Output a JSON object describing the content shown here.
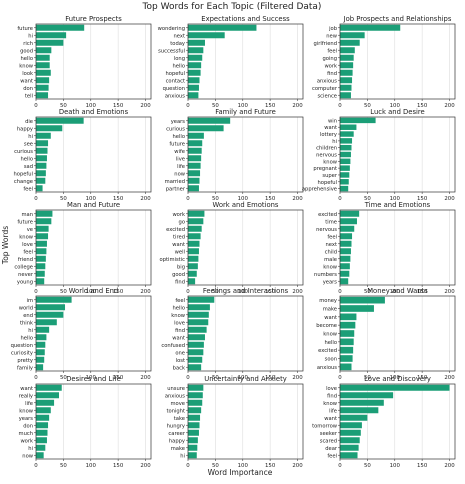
{
  "figure": {
    "title": "Top Words for Each Topic (Filtered Data)",
    "xlabel": "Word Importance",
    "ylabel": "Top Words",
    "bar_color": "#1b9e77",
    "grid_color": "#dddddd"
  },
  "chart_data": [
    {
      "type": "bar",
      "orientation": "horizontal",
      "title": "Future Prospects",
      "xlim": [
        0,
        210
      ],
      "xticks": [
        0,
        50,
        100,
        150,
        200
      ],
      "categories": [
        "future",
        "hi",
        "rich",
        "good",
        "hello",
        "know",
        "look",
        "want",
        "don",
        "tell"
      ],
      "values": [
        88,
        55,
        50,
        28,
        25,
        25,
        27,
        24,
        23,
        22
      ]
    },
    {
      "type": "bar",
      "orientation": "horizontal",
      "title": "Expectations and Success",
      "xlim": [
        0,
        210
      ],
      "xticks": [
        0,
        50,
        100,
        150,
        200
      ],
      "categories": [
        "wondering",
        "next",
        "today",
        "successful",
        "long",
        "hello",
        "hopeful",
        "contact",
        "question",
        "anxious"
      ],
      "values": [
        125,
        67,
        31,
        28,
        26,
        24,
        23,
        21,
        20,
        19
      ]
    },
    {
      "type": "bar",
      "orientation": "horizontal",
      "title": "Job Prospects and Relationships",
      "xlim": [
        0,
        210
      ],
      "xticks": [
        0,
        50,
        100,
        150,
        200
      ],
      "categories": [
        "job",
        "new",
        "girlfriend",
        "feel",
        "going",
        "work",
        "find",
        "anxious",
        "computer",
        "science"
      ],
      "values": [
        110,
        45,
        36,
        27,
        25,
        24,
        23,
        22,
        21,
        20
      ]
    },
    {
      "type": "bar",
      "orientation": "horizontal",
      "title": "Death and Emotions",
      "xlim": [
        0,
        210
      ],
      "xticks": [
        0,
        50,
        100,
        150,
        200
      ],
      "categories": [
        "die",
        "happy",
        "hi",
        "see",
        "curious",
        "hello",
        "sad",
        "hopeful",
        "change",
        "feel"
      ],
      "values": [
        87,
        48,
        27,
        22,
        21,
        20,
        19,
        18,
        17,
        12
      ]
    },
    {
      "type": "bar",
      "orientation": "horizontal",
      "title": "Family and Future",
      "xlim": [
        0,
        210
      ],
      "xticks": [
        0,
        50,
        100,
        150,
        200
      ],
      "categories": [
        "years",
        "curious",
        "hello",
        "future",
        "wife",
        "live",
        "life",
        "now",
        "married",
        "partner"
      ],
      "values": [
        77,
        65,
        29,
        26,
        25,
        24,
        23,
        22,
        21,
        20
      ]
    },
    {
      "type": "bar",
      "orientation": "horizontal",
      "title": "Luck and Desire",
      "xlim": [
        0,
        210
      ],
      "xticks": [
        0,
        50,
        100,
        150,
        200
      ],
      "categories": [
        "win",
        "want",
        "lottery",
        "hi",
        "children",
        "nervous",
        "know",
        "pregnant",
        "super",
        "hopeful",
        "apprehensive"
      ],
      "values": [
        65,
        30,
        25,
        22,
        21,
        20,
        19,
        18,
        17,
        16,
        15
      ]
    },
    {
      "type": "bar",
      "orientation": "horizontal",
      "title": "Man and Future",
      "xlim": [
        0,
        210
      ],
      "xticks": [
        0,
        50,
        100,
        150,
        200
      ],
      "categories": [
        "man",
        "future",
        "ve",
        "know",
        "love",
        "feel",
        "friend",
        "college",
        "never",
        "young"
      ],
      "values": [
        30,
        28,
        23,
        22,
        20,
        19,
        18,
        17,
        16,
        15
      ]
    },
    {
      "type": "bar",
      "orientation": "horizontal",
      "title": "Work and Emotions",
      "xlim": [
        0,
        210
      ],
      "xticks": [
        0,
        50,
        100,
        150,
        200
      ],
      "categories": [
        "work",
        "go",
        "excited",
        "tired",
        "want",
        "well",
        "optimistic",
        "big",
        "good",
        "find"
      ],
      "values": [
        30,
        28,
        25,
        23,
        21,
        20,
        19,
        18,
        16,
        13
      ]
    },
    {
      "type": "bar",
      "orientation": "horizontal",
      "title": "Time and Emotions",
      "xlim": [
        0,
        210
      ],
      "xticks": [
        0,
        50,
        100,
        150,
        200
      ],
      "categories": [
        "excited",
        "time",
        "nervous",
        "feel",
        "next",
        "child",
        "male",
        "know",
        "numbers",
        "years"
      ],
      "values": [
        35,
        31,
        26,
        22,
        21,
        20,
        19,
        18,
        17,
        15
      ]
    },
    {
      "type": "bar",
      "orientation": "horizontal",
      "title": "World and End",
      "xlim": [
        0,
        210
      ],
      "xticks": [
        0,
        50,
        100,
        150,
        200
      ],
      "categories": [
        "im",
        "world",
        "end",
        "think",
        "hi",
        "hello",
        "question",
        "curiosity",
        "pretty",
        "family"
      ],
      "values": [
        65,
        53,
        50,
        38,
        24,
        19,
        17,
        16,
        15,
        13
      ]
    },
    {
      "type": "bar",
      "orientation": "horizontal",
      "title": "Feelings and Interactions",
      "xlim": [
        0,
        210
      ],
      "xticks": [
        0,
        50,
        100,
        150,
        200
      ],
      "categories": [
        "feel",
        "hello",
        "know",
        "love",
        "find",
        "want",
        "confused",
        "one",
        "lost",
        "back"
      ],
      "values": [
        48,
        40,
        38,
        37,
        34,
        31,
        29,
        28,
        26,
        24
      ]
    },
    {
      "type": "bar",
      "orientation": "horizontal",
      "title": "Money and Wants",
      "xlim": [
        0,
        210
      ],
      "xticks": [
        0,
        50,
        100,
        150,
        200
      ],
      "categories": [
        "money",
        "make",
        "want",
        "become",
        "know",
        "hello",
        "excited",
        "soon",
        "anxious"
      ],
      "values": [
        82,
        62,
        30,
        28,
        26,
        25,
        24,
        23,
        21
      ]
    },
    {
      "type": "bar",
      "orientation": "horizontal",
      "title": "Desires and Life",
      "xlim": [
        0,
        210
      ],
      "xticks": [
        0,
        50,
        100,
        150,
        200
      ],
      "categories": [
        "want",
        "really",
        "life",
        "know",
        "years",
        "don",
        "much",
        "work",
        "hi",
        "now"
      ],
      "values": [
        47,
        42,
        33,
        27,
        24,
        22,
        21,
        20,
        17,
        14
      ]
    },
    {
      "type": "bar",
      "orientation": "horizontal",
      "title": "Uncertainty and Anxiety",
      "xlim": [
        0,
        210
      ],
      "xticks": [
        0,
        50,
        100,
        150,
        200
      ],
      "categories": [
        "unsure",
        "anxious",
        "move",
        "tonight",
        "take",
        "hungry",
        "career",
        "happy",
        "make",
        "hi"
      ],
      "values": [
        28,
        27,
        26,
        24,
        22,
        21,
        20,
        18,
        17,
        16
      ]
    },
    {
      "type": "bar",
      "orientation": "horizontal",
      "title": "Love and Discovery",
      "xlim": [
        0,
        210
      ],
      "xticks": [
        0,
        50,
        100,
        150,
        200
      ],
      "categories": [
        "love",
        "find",
        "know",
        "life",
        "want",
        "tomorrow",
        "seeker",
        "scared",
        "dear",
        "feel"
      ],
      "values": [
        200,
        97,
        80,
        70,
        50,
        40,
        38,
        36,
        34,
        32
      ]
    }
  ]
}
